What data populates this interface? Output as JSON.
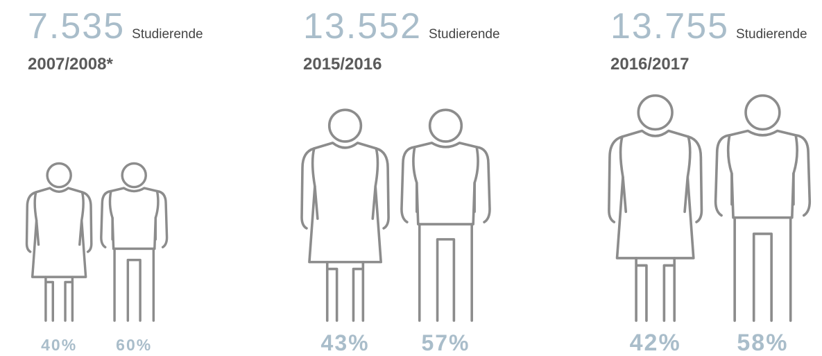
{
  "chart_data": {
    "type": "pictogram",
    "unit": "Studierende",
    "categories": [
      "2007/2008*",
      "2015/2016",
      "2016/2017"
    ],
    "totals": [
      7535,
      13552,
      13755
    ],
    "total_labels": [
      "7.535",
      "13.552",
      "13.755"
    ],
    "series": [
      {
        "values": [
          40,
          43,
          42
        ],
        "value_labels": [
          "40%",
          "43%",
          "42%"
        ]
      },
      {
        "values": [
          60,
          57,
          58
        ],
        "value_labels": [
          "60%",
          "57%",
          "58%"
        ]
      }
    ],
    "number_color": "#a9bdca",
    "figure_color": "#8c8c8c"
  }
}
